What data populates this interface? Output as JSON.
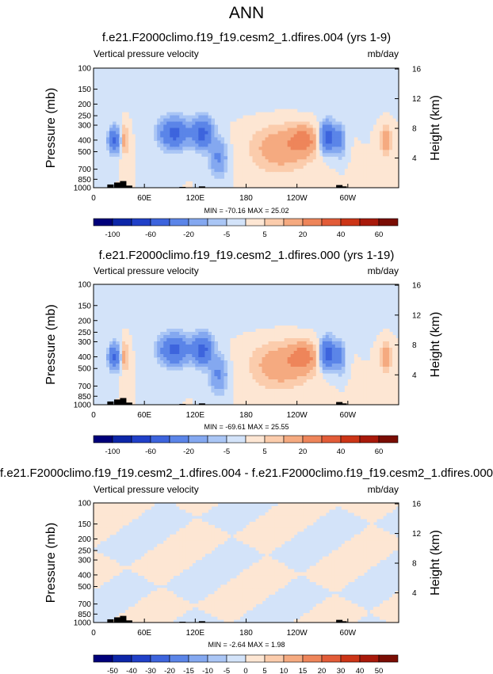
{
  "figure_title": "ANN",
  "chart_data": [
    {
      "type": "heatmap",
      "title": "f.e21.F2000climo.f19_f19.cesm2_1.dfires.004 (yrs 1-9)",
      "left_subtitle": "Vertical pressure velocity",
      "right_subtitle": "mb/day",
      "ylabel": "Pressure (mb)",
      "y2label": "Height (km)",
      "xticks": [
        "0",
        "60E",
        "120E",
        "180",
        "120W",
        "60W"
      ],
      "yticks": [
        "100",
        "150",
        "200",
        "250",
        "300",
        "400",
        "500",
        "700",
        "850",
        "1000"
      ],
      "y2ticks": [
        "16",
        "12",
        "8",
        "4"
      ],
      "y_scale": "log",
      "y_reversed": true,
      "minmax": "MIN = -70.16   MAX =  25.02",
      "colorbar_labels": [
        "-100",
        "",
        "-60",
        "",
        "-20",
        "",
        "-5",
        "",
        "5",
        "",
        "20",
        "",
        "40",
        "",
        "60"
      ],
      "colorbar_colors": [
        "#00007a",
        "#0d26a8",
        "#2040c8",
        "#3d64dd",
        "#5b85e8",
        "#84a8f0",
        "#aac6f5",
        "#d3e3f9",
        "#fde6d3",
        "#fbccac",
        "#f5aa80",
        "#ee855a",
        "#e25c38",
        "#cc3517",
        "#a8190a",
        "#7a0d04"
      ],
      "features": [
        {
          "cx": 24,
          "cy": 400,
          "rx": 6,
          "ry": 1.25,
          "v": -45
        },
        {
          "cx": 37,
          "cy": 400,
          "rx": 4,
          "ry": 1.35,
          "v": 14
        },
        {
          "cx": 95,
          "cy": 350,
          "rx": 16,
          "ry": 1.3,
          "v": -48
        },
        {
          "cx": 128,
          "cy": 350,
          "rx": 11,
          "ry": 1.3,
          "v": -50
        },
        {
          "cx": 147,
          "cy": 560,
          "rx": 10,
          "ry": 1.4,
          "v": -22
        },
        {
          "cx": 220,
          "cy": 470,
          "rx": 34,
          "ry": 1.55,
          "v": 16
        },
        {
          "cx": 248,
          "cy": 400,
          "rx": 16,
          "ry": 1.3,
          "v": 22
        },
        {
          "cx": 276,
          "cy": 380,
          "rx": 8,
          "ry": 1.3,
          "v": -55
        },
        {
          "cx": 290,
          "cy": 400,
          "rx": 6,
          "ry": 1.3,
          "v": -28
        },
        {
          "cx": 345,
          "cy": 400,
          "rx": 7,
          "ry": 1.3,
          "v": 17
        },
        {
          "cx": 180,
          "cy": 130,
          "rx": 180,
          "ry": 1.6,
          "v": -4
        }
      ],
      "topography": [
        {
          "lon": 20,
          "p": 940
        },
        {
          "lon": 28,
          "p": 905
        },
        {
          "lon": 35,
          "p": 880
        },
        {
          "lon": 42,
          "p": 960
        },
        {
          "lon": 105,
          "p": 985
        },
        {
          "lon": 128,
          "p": 975
        },
        {
          "lon": 290,
          "p": 950
        },
        {
          "lon": 295,
          "p": 975
        }
      ]
    },
    {
      "type": "heatmap",
      "title": "f.e21.F2000climo.f19_f19.cesm2_1.dfires.000 (yrs 1-19)",
      "left_subtitle": "Vertical pressure velocity",
      "right_subtitle": "mb/day",
      "ylabel": "Pressure (mb)",
      "y2label": "Height (km)",
      "xticks": [
        "0",
        "60E",
        "120E",
        "180",
        "120W",
        "60W"
      ],
      "yticks": [
        "100",
        "150",
        "200",
        "250",
        "300",
        "400",
        "500",
        "700",
        "850",
        "1000"
      ],
      "y2ticks": [
        "16",
        "12",
        "8",
        "4"
      ],
      "y_scale": "log",
      "y_reversed": true,
      "minmax": "MIN = -69.61   MAX =  25.55",
      "colorbar_labels": [
        "-100",
        "",
        "-60",
        "",
        "-20",
        "",
        "-5",
        "",
        "5",
        "",
        "20",
        "",
        "40",
        "",
        "60"
      ],
      "colorbar_colors": [
        "#00007a",
        "#0d26a8",
        "#2040c8",
        "#3d64dd",
        "#5b85e8",
        "#84a8f0",
        "#aac6f5",
        "#d3e3f9",
        "#fde6d3",
        "#fbccac",
        "#f5aa80",
        "#ee855a",
        "#e25c38",
        "#cc3517",
        "#a8190a",
        "#7a0d04"
      ],
      "features": [
        {
          "cx": 24,
          "cy": 400,
          "rx": 6,
          "ry": 1.25,
          "v": -45
        },
        {
          "cx": 37,
          "cy": 400,
          "rx": 4,
          "ry": 1.35,
          "v": 14
        },
        {
          "cx": 95,
          "cy": 350,
          "rx": 16,
          "ry": 1.3,
          "v": -47
        },
        {
          "cx": 128,
          "cy": 350,
          "rx": 11,
          "ry": 1.3,
          "v": -50
        },
        {
          "cx": 147,
          "cy": 560,
          "rx": 10,
          "ry": 1.4,
          "v": -22
        },
        {
          "cx": 220,
          "cy": 470,
          "rx": 34,
          "ry": 1.55,
          "v": 16
        },
        {
          "cx": 248,
          "cy": 400,
          "rx": 16,
          "ry": 1.3,
          "v": 22
        },
        {
          "cx": 276,
          "cy": 380,
          "rx": 8,
          "ry": 1.3,
          "v": -55
        },
        {
          "cx": 290,
          "cy": 400,
          "rx": 6,
          "ry": 1.3,
          "v": -28
        },
        {
          "cx": 345,
          "cy": 400,
          "rx": 7,
          "ry": 1.3,
          "v": 17
        },
        {
          "cx": 180,
          "cy": 130,
          "rx": 180,
          "ry": 1.6,
          "v": -4
        }
      ],
      "topography": [
        {
          "lon": 20,
          "p": 940
        },
        {
          "lon": 28,
          "p": 905
        },
        {
          "lon": 35,
          "p": 880
        },
        {
          "lon": 42,
          "p": 960
        },
        {
          "lon": 105,
          "p": 985
        },
        {
          "lon": 128,
          "p": 975
        },
        {
          "lon": 290,
          "p": 950
        },
        {
          "lon": 295,
          "p": 975
        }
      ]
    },
    {
      "type": "heatmap",
      "title": "f.e21.F2000climo.f19_f19.cesm2_1.dfires.004 - f.e21.F2000climo.f19_f19.cesm2_1.dfires.000",
      "left_subtitle": "Vertical pressure velocity",
      "right_subtitle": "mb/day",
      "ylabel": "Pressure (mb)",
      "y2label": "Height (km)",
      "xticks": [
        "0",
        "60E",
        "120E",
        "180",
        "120W",
        "60W"
      ],
      "yticks": [
        "100",
        "150",
        "200",
        "250",
        "300",
        "400",
        "500",
        "700",
        "850",
        "1000"
      ],
      "y2ticks": [
        "16",
        "12",
        "8",
        "4"
      ],
      "y_scale": "log",
      "y_reversed": true,
      "minmax": "MIN =  -2.64   MAX =   1.98",
      "colorbar_labels": [
        "-50",
        "-40",
        "-30",
        "-20",
        "-15",
        "-10",
        "-5",
        "0",
        "5",
        "10",
        "15",
        "20",
        "30",
        "40",
        "50"
      ],
      "colorbar_colors": [
        "#00007a",
        "#0d26a8",
        "#2040c8",
        "#3d64dd",
        "#5b85e8",
        "#84a8f0",
        "#aac6f5",
        "#d3e3f9",
        "#fde6d3",
        "#fbccac",
        "#f5aa80",
        "#ee855a",
        "#e25c38",
        "#cc3517",
        "#a8190a",
        "#7a0d04"
      ],
      "features": [],
      "topography": [
        {
          "lon": 20,
          "p": 940
        },
        {
          "lon": 28,
          "p": 905
        },
        {
          "lon": 35,
          "p": 880
        },
        {
          "lon": 42,
          "p": 960
        },
        {
          "lon": 105,
          "p": 985
        },
        {
          "lon": 128,
          "p": 975
        },
        {
          "lon": 290,
          "p": 950
        },
        {
          "lon": 295,
          "p": 975
        }
      ]
    }
  ]
}
